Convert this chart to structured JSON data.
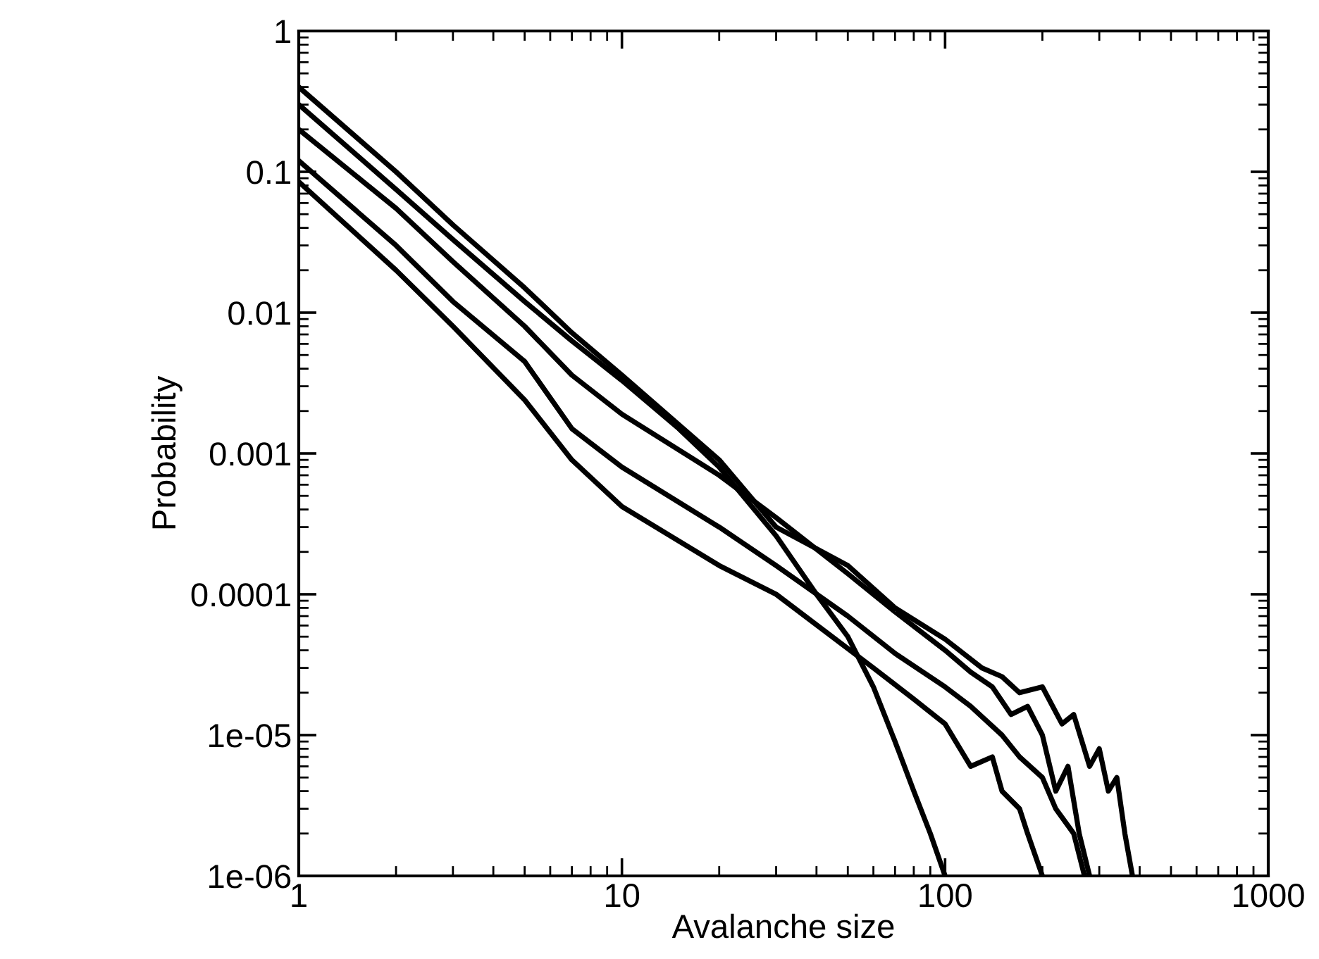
{
  "chart_data": {
    "type": "line",
    "xlabel": "Avalanche size",
    "ylabel": "Probability",
    "log": "xy",
    "xlim": [
      1,
      1000
    ],
    "ylim": [
      1e-06,
      1
    ],
    "xticks": [
      1,
      10,
      100,
      1000
    ],
    "yticks": [
      1,
      0.1,
      0.01,
      0.001,
      0.0001,
      {
        "value": 1e-05,
        "label": "1e-05"
      },
      {
        "value": 1e-06,
        "label": "1e-06"
      }
    ],
    "grid": false,
    "marker": "none",
    "line_style": "solid",
    "series": [
      {
        "color": "#000000",
        "x": [
          1,
          2,
          3,
          5,
          7,
          10,
          15,
          20,
          30,
          40,
          50,
          60,
          70,
          80,
          90,
          100
        ],
        "values": [
          0.3,
          0.075,
          0.033,
          0.012,
          0.0063,
          0.0033,
          0.0015,
          0.0008,
          0.00026,
          0.0001,
          5e-05,
          2.2e-05,
          9e-06,
          4e-06,
          2e-06,
          1e-06
        ]
      },
      {
        "color": "#000000",
        "x": [
          1,
          2,
          3,
          5,
          7,
          10,
          20,
          30,
          50,
          70,
          100,
          130,
          150,
          170,
          200,
          230,
          250,
          280,
          300,
          320,
          340,
          360,
          380
        ],
        "values": [
          0.4,
          0.1,
          0.042,
          0.015,
          0.0072,
          0.0036,
          0.0009,
          0.0003,
          0.00016,
          8e-05,
          4.8e-05,
          3e-05,
          2.6e-05,
          2e-05,
          2.2e-05,
          1.2e-05,
          1.4e-05,
          6e-06,
          8e-06,
          4e-06,
          5e-06,
          2e-06,
          1e-06
        ]
      },
      {
        "color": "#000000",
        "x": [
          1,
          2,
          3,
          5,
          7,
          10,
          20,
          30,
          50,
          70,
          100,
          120,
          140,
          160,
          180,
          200,
          220,
          240,
          260,
          280
        ],
        "values": [
          0.2,
          0.055,
          0.023,
          0.008,
          0.0036,
          0.0019,
          0.0007,
          0.00035,
          0.00014,
          7.5e-05,
          4e-05,
          2.8e-05,
          2.2e-05,
          1.4e-05,
          1.6e-05,
          1e-05,
          4e-06,
          6e-06,
          2e-06,
          1e-06
        ]
      },
      {
        "color": "#000000",
        "x": [
          1,
          2,
          3,
          5,
          7,
          10,
          20,
          30,
          50,
          70,
          100,
          120,
          150,
          170,
          200,
          220,
          250,
          270
        ],
        "values": [
          0.12,
          0.03,
          0.012,
          0.0045,
          0.0015,
          0.0008,
          0.0003,
          0.00016,
          7e-05,
          3.8e-05,
          2.2e-05,
          1.6e-05,
          1e-05,
          7e-06,
          5e-06,
          3e-06,
          2e-06,
          1e-06
        ]
      },
      {
        "color": "#000000",
        "x": [
          1,
          2,
          3,
          5,
          7,
          10,
          20,
          30,
          60,
          80,
          100,
          120,
          140,
          150,
          170,
          180,
          200
        ],
        "values": [
          0.085,
          0.02,
          0.008,
          0.0024,
          0.0009,
          0.00042,
          0.00016,
          0.0001,
          3e-05,
          1.8e-05,
          1.2e-05,
          6e-06,
          7e-06,
          4e-06,
          3e-06,
          2e-06,
          1e-06
        ]
      }
    ]
  }
}
